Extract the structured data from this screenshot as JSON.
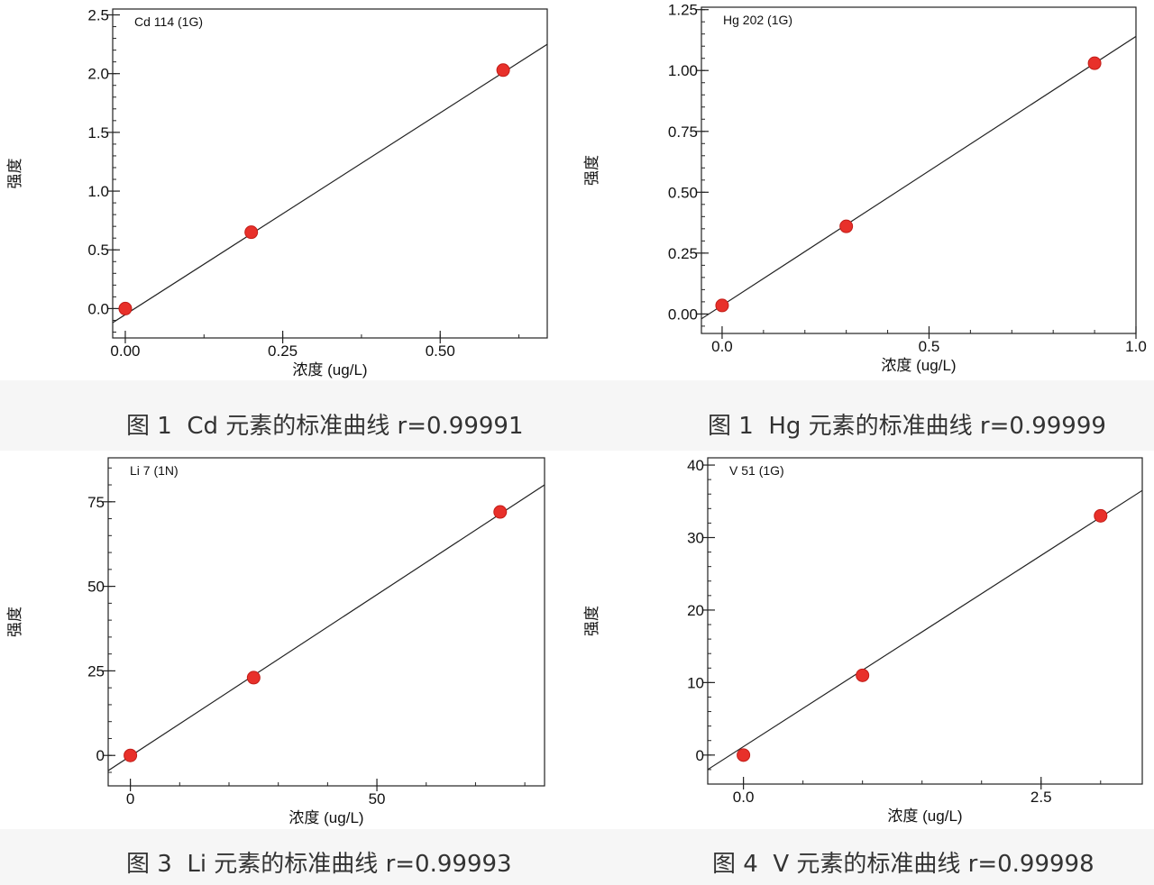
{
  "figures": [
    {
      "caption": "图 1  Cd 元素的标准曲线 r=0.99991",
      "chart_data": {
        "type": "scatter",
        "title": "Cd 114 (1G)",
        "xlabel": "浓度 (ug/L)",
        "ylabel": "强度",
        "xlim": [
          -0.02,
          0.67
        ],
        "ylim": [
          -0.25,
          2.55
        ],
        "xticks": [
          0.0,
          0.25,
          0.5
        ],
        "xtick_labels": [
          "0.00",
          "0.25",
          "0.50"
        ],
        "yticks": [
          0.0,
          0.5,
          1.0,
          1.5,
          2.0,
          2.5
        ],
        "ytick_labels": [
          "0.0",
          "0.5",
          "1.0",
          "1.5",
          "2.0",
          "2.5"
        ],
        "x": [
          0.0,
          0.2,
          0.6
        ],
        "y": [
          0.0,
          0.65,
          2.03
        ],
        "fit_line": [
          [
            -0.02,
            -0.12
          ],
          [
            0.67,
            2.25
          ]
        ]
      }
    },
    {
      "caption": "图 1  Hg 元素的标准曲线 r=0.99999",
      "chart_data": {
        "type": "scatter",
        "title": "Hg 202 (1G)",
        "xlabel": "浓度 (ug/L)",
        "ylabel": "强度",
        "xlim": [
          -0.05,
          1.0
        ],
        "ylim": [
          -0.08,
          1.26
        ],
        "xticks": [
          0.0,
          0.5,
          1.0
        ],
        "xtick_labels": [
          "0.0",
          "0.5",
          "1.0"
        ],
        "yticks": [
          0.0,
          0.25,
          0.5,
          0.75,
          1.0,
          1.25
        ],
        "ytick_labels": [
          "0.00",
          "0.25",
          "0.50",
          "0.75",
          "1.00",
          "1.25"
        ],
        "x": [
          0.0,
          0.3,
          0.9
        ],
        "y": [
          0.035,
          0.36,
          1.03
        ],
        "fit_line": [
          [
            -0.05,
            -0.02
          ],
          [
            1.0,
            1.14
          ]
        ]
      }
    },
    {
      "caption": "图 3  Li 元素的标准曲线 r=0.99993",
      "chart_data": {
        "type": "scatter",
        "title": "Li 7 (1N)",
        "xlabel": "浓度 (ug/L)",
        "ylabel": "强度",
        "xlim": [
          -4.5,
          84
        ],
        "ylim": [
          -9,
          88
        ],
        "xticks": [
          0,
          50
        ],
        "xtick_labels": [
          "0",
          "50"
        ],
        "yticks": [
          0,
          25,
          50,
          75
        ],
        "ytick_labels": [
          "0",
          "25",
          "50",
          "75"
        ],
        "x": [
          0,
          25,
          75
        ],
        "y": [
          0,
          23,
          72
        ],
        "fit_line": [
          [
            -4.5,
            -4.5
          ],
          [
            84,
            80
          ]
        ]
      }
    },
    {
      "caption": "图 4  V 元素的标准曲线 r=0.99998",
      "chart_data": {
        "type": "scatter",
        "title": "V 51 (1G)",
        "xlabel": "浓度 (ug/L)",
        "ylabel": "强度",
        "xlim": [
          -0.3,
          3.35
        ],
        "ylim": [
          -4,
          41
        ],
        "xticks": [
          0.0,
          2.5
        ],
        "xtick_labels": [
          "0.0",
          "2.5"
        ],
        "yticks": [
          0,
          10,
          20,
          30,
          40
        ],
        "ytick_labels": [
          "0",
          "10",
          "20",
          "30",
          "40"
        ],
        "x": [
          0,
          1,
          3
        ],
        "y": [
          0,
          11,
          33
        ],
        "fit_line": [
          [
            -0.3,
            -2
          ],
          [
            3.35,
            36.5
          ]
        ]
      }
    }
  ]
}
